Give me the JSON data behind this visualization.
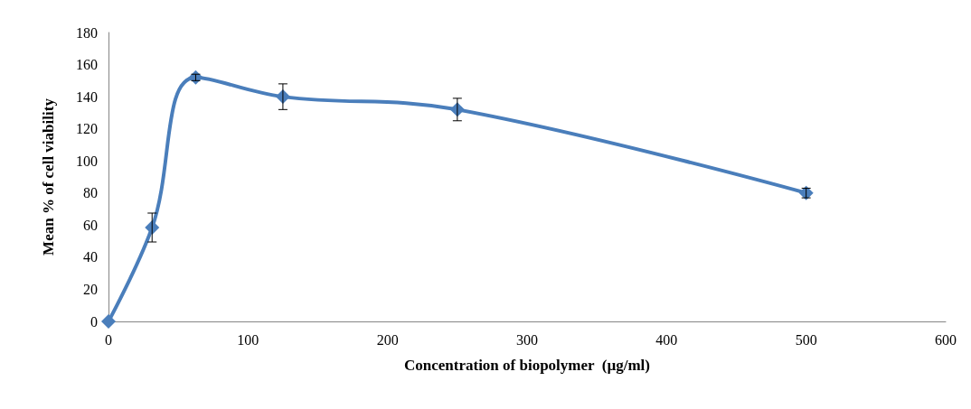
{
  "chart_data": {
    "type": "line",
    "xlabel": "Concentration of biopolymer  (µg/ml)",
    "ylabel": "Mean % of cell viability",
    "x": [
      0,
      31.25,
      62.5,
      125,
      250,
      500
    ],
    "series": [
      {
        "color": "#4a7ebb",
        "values": [
          0,
          58.5,
          152,
          140,
          132,
          80
        ],
        "errors": [
          null,
          9,
          2,
          8,
          7,
          3
        ]
      }
    ],
    "xlim": [
      0,
      600
    ],
    "xticks": [
      0,
      100,
      200,
      300,
      400,
      500,
      600
    ],
    "ylim": [
      0,
      180
    ],
    "yticks": [
      0,
      20,
      40,
      60,
      80,
      100,
      120,
      140,
      160,
      180
    ],
    "grid": false,
    "marker": "diamond",
    "line_style": "solid"
  }
}
